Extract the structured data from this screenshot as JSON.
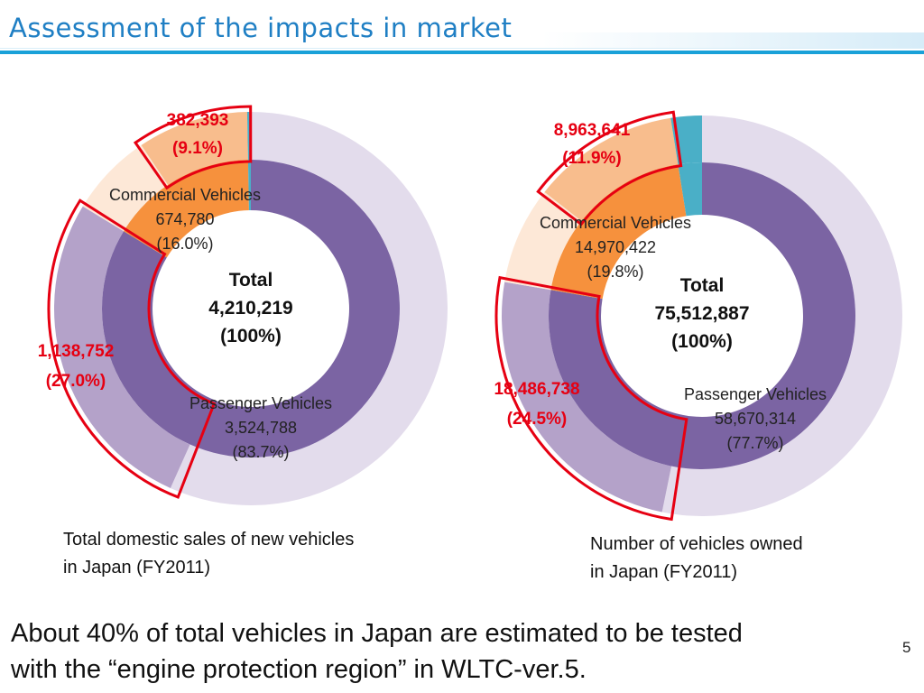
{
  "title": "Assessment of the impacts in market",
  "colors": {
    "title_blue": "#1f7fc4",
    "rule_blue": "#1aa1d8",
    "outer_ring": "#e3dcec",
    "outer_highlight": "#b4a2c9",
    "inner_passenger": "#7b64a3",
    "inner_commercial": "#f6913d",
    "outer_commercial_light": "#fde8d7",
    "outer_commercial_highlight": "#f8bd8d",
    "other_segment": "#4aafc7",
    "callout_red": "#e60012"
  },
  "chart_data": [
    {
      "type": "donut",
      "caption_line1": "Total domestic sales of new vehicles",
      "caption_line2": "in Japan (FY2011)",
      "total": {
        "line1": "Total",
        "line2": "4,210,219",
        "line3": "(100%)",
        "value": 4210219
      },
      "inner": [
        {
          "name": "Passenger Vehicles",
          "value_text": "3,524,788",
          "pct_text": "(83.7%)",
          "value": 3524788,
          "pct": 83.7
        },
        {
          "name": "Commercial Vehicles",
          "value_text": "674,780",
          "pct_text": "(16.0%)",
          "value": 674780,
          "pct": 16.0
        },
        {
          "name": "",
          "pct": 0.3
        }
      ],
      "highlights": [
        {
          "value_text": "1,138,752",
          "pct_text": "(27.0%)",
          "value": 1138752,
          "pct": 27.0
        },
        {
          "value_text": "382,393",
          "pct_text": "(9.1%)",
          "value": 382393,
          "pct": 9.1
        }
      ]
    },
    {
      "type": "donut",
      "caption_line1": "Number of vehicles owned",
      "caption_line2": "in Japan (FY2011)",
      "total": {
        "line1": "Total",
        "line2": "75,512,887",
        "line3": "(100%)",
        "value": 75512887
      },
      "inner": [
        {
          "name": "Passenger Vehicles",
          "value_text": "58,670,314",
          "pct_text": "(77.7%)",
          "value": 58670314,
          "pct": 77.7
        },
        {
          "name": "Commercial Vehicles",
          "value_text": "14,970,422",
          "pct_text": "(19.8%)",
          "value": 14970422,
          "pct": 19.8
        },
        {
          "name": "",
          "pct": 2.5
        }
      ],
      "highlights": [
        {
          "value_text": "18,486,738",
          "pct_text": "(24.5%)",
          "value": 18486738,
          "pct": 24.5
        },
        {
          "value_text": "8,963,641",
          "pct_text": "(11.9%)",
          "value": 8963641,
          "pct": 11.9
        }
      ]
    }
  ],
  "conclusion_line1": "About 40% of total vehicles in Japan are estimated to be tested",
  "conclusion_line2": "with the “engine protection region” in WLTC-ver.5.",
  "page_number": "5"
}
